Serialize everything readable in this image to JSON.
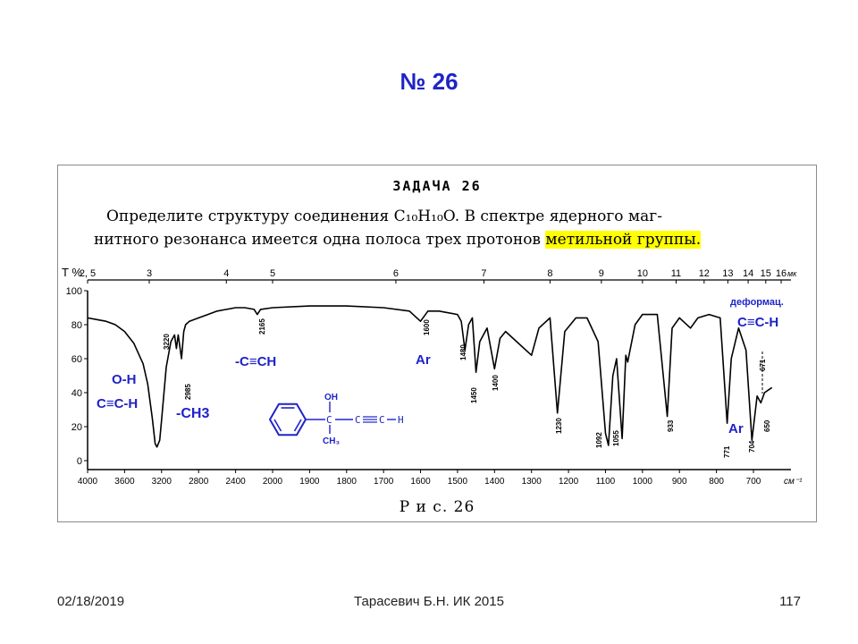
{
  "slide": {
    "title": "№ 26",
    "footer_date": "02/18/2019",
    "footer_author": "Тарасевич Б.Н.  ИК 2015",
    "footer_page": "117"
  },
  "task": {
    "heading": "ЗАДАЧА 26",
    "line1": "Определите структуру соединения C₁₀H₁₀O. В спектре ядерного маг-",
    "line2_plain": "нитного резонанса имеется одна полоса трех протонов ",
    "line2_highlight": "метильной группы.",
    "figure_caption": "Р и с. 26"
  },
  "chart_data": {
    "type": "line",
    "title": "",
    "xlabel": "см⁻¹",
    "ylabel": "T %",
    "wavelength_unit": "мк",
    "ylim": [
      0,
      100
    ],
    "xlim": [
      4000,
      650
    ],
    "x_ticks": [
      "4000",
      "3600",
      "3200",
      "2800",
      "2400",
      "2000",
      "1900",
      "1800",
      "1700",
      "1600",
      "1500",
      "1400",
      "1300",
      "1200",
      "1100",
      "1000",
      "900",
      "800",
      "700"
    ],
    "y_ticks": [
      "100",
      "80",
      "60",
      "40",
      "20",
      "0"
    ],
    "top_ticks": [
      "2, 5",
      "3",
      "4",
      "5",
      "6",
      "7",
      "8",
      "9",
      "10",
      "11",
      "12",
      "13",
      "14",
      "15",
      "16"
    ],
    "series": [
      {
        "name": "",
        "points": [
          [
            4000,
            84
          ],
          [
            3900,
            83
          ],
          [
            3800,
            82
          ],
          [
            3700,
            80
          ],
          [
            3600,
            76
          ],
          [
            3500,
            69
          ],
          [
            3400,
            57
          ],
          [
            3350,
            45
          ],
          [
            3300,
            25
          ],
          [
            3270,
            10
          ],
          [
            3250,
            8
          ],
          [
            3220,
            12
          ],
          [
            3200,
            24
          ],
          [
            3150,
            55
          ],
          [
            3100,
            70
          ],
          [
            3060,
            74
          ],
          [
            3040,
            66
          ],
          [
            3020,
            74
          ],
          [
            2985,
            60
          ],
          [
            2960,
            76
          ],
          [
            2940,
            80
          ],
          [
            2900,
            82
          ],
          [
            2800,
            84
          ],
          [
            2700,
            86
          ],
          [
            2600,
            88
          ],
          [
            2500,
            89
          ],
          [
            2400,
            90
          ],
          [
            2300,
            90
          ],
          [
            2200,
            89
          ],
          [
            2165,
            86
          ],
          [
            2130,
            89
          ],
          [
            2000,
            90
          ],
          [
            1900,
            91
          ],
          [
            1800,
            91
          ],
          [
            1700,
            90
          ],
          [
            1630,
            88
          ],
          [
            1600,
            82
          ],
          [
            1580,
            88
          ],
          [
            1550,
            88
          ],
          [
            1500,
            86
          ],
          [
            1490,
            82
          ],
          [
            1480,
            65
          ],
          [
            1470,
            80
          ],
          [
            1460,
            84
          ],
          [
            1450,
            52
          ],
          [
            1440,
            70
          ],
          [
            1420,
            78
          ],
          [
            1400,
            54
          ],
          [
            1385,
            72
          ],
          [
            1370,
            76
          ],
          [
            1340,
            70
          ],
          [
            1300,
            62
          ],
          [
            1280,
            78
          ],
          [
            1250,
            84
          ],
          [
            1230,
            28
          ],
          [
            1210,
            76
          ],
          [
            1180,
            84
          ],
          [
            1150,
            84
          ],
          [
            1120,
            70
          ],
          [
            1100,
            16
          ],
          [
            1092,
            9
          ],
          [
            1080,
            50
          ],
          [
            1070,
            60
          ],
          [
            1055,
            13
          ],
          [
            1045,
            62
          ],
          [
            1040,
            58
          ],
          [
            1020,
            80
          ],
          [
            1000,
            86
          ],
          [
            960,
            86
          ],
          [
            933,
            26
          ],
          [
            920,
            78
          ],
          [
            900,
            84
          ],
          [
            870,
            78
          ],
          [
            850,
            84
          ],
          [
            820,
            86
          ],
          [
            790,
            84
          ],
          [
            771,
            22
          ],
          [
            760,
            60
          ],
          [
            740,
            78
          ],
          [
            720,
            65
          ],
          [
            704,
            12
          ],
          [
            690,
            38
          ],
          [
            680,
            34
          ],
          [
            670,
            40
          ],
          [
            650,
            43
          ]
        ]
      }
    ],
    "peak_labels": [
      "3220",
      "2985",
      "2165",
      "1600",
      "1480",
      "1450",
      "1400",
      "1230",
      "1092",
      "1055",
      "933",
      "771",
      "704",
      "671",
      "650"
    ],
    "annotations": [
      "О-Н",
      "С≡С-Н",
      "-СН3",
      "-С≡СН",
      "Ar",
      "деформац.",
      "С≡С-Н",
      "Ar"
    ],
    "structure": {
      "oh": "OH",
      "c1": "C",
      "c2": "C",
      "c3": "C",
      "h": "H",
      "ch3": "CH₃"
    },
    "grid": false,
    "colors": {
      "spectrum": "#000000",
      "annotation": "#1f23c8",
      "structure": "#1f23c8",
      "highlight": "#ffff00"
    }
  }
}
